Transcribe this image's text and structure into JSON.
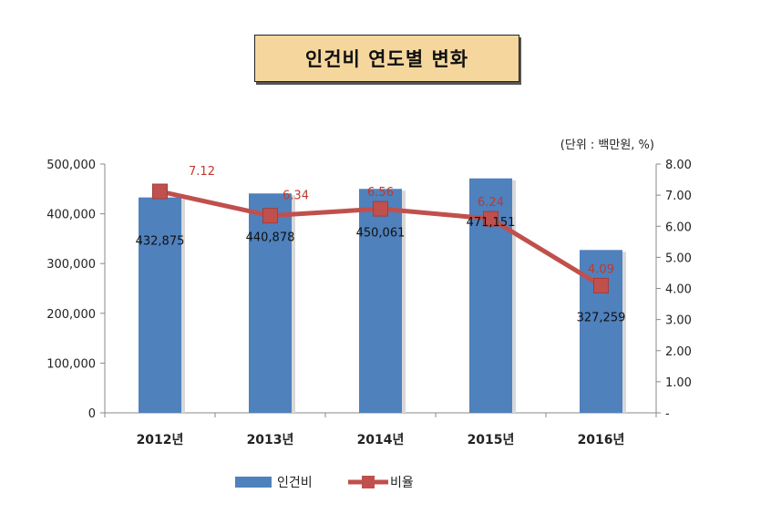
{
  "title": "인건비 연도별 변화",
  "chart_data": {
    "type": "bar+line",
    "unit_note": "(단위 : 백만원, %)",
    "categories": [
      "2012년",
      "2013년",
      "2014년",
      "2015년",
      "2016년"
    ],
    "series": [
      {
        "name": "인건비",
        "type": "bar",
        "axis": "left",
        "values": [
          432875,
          440878,
          450061,
          471151,
          327259
        ],
        "labels": [
          "432,875",
          "440,878",
          "450,061",
          "471,151",
          "327,259"
        ],
        "color": "#4f81bd"
      },
      {
        "name": "비율",
        "type": "line",
        "axis": "right",
        "values": [
          7.12,
          6.34,
          6.56,
          6.24,
          4.09
        ],
        "labels": [
          "7.12",
          "6.34",
          "6.56",
          "6.24",
          "4.09"
        ],
        "color": "#c0504d"
      }
    ],
    "left_axis": {
      "ylim": [
        0,
        500000
      ],
      "ticks": [
        "0",
        "100,000",
        "200,000",
        "300,000",
        "400,000",
        "500,000"
      ]
    },
    "right_axis": {
      "ylim": [
        0,
        8
      ],
      "ticks": [
        "-",
        "1.00",
        "2.00",
        "3.00",
        "4.00",
        "5.00",
        "6.00",
        "7.00",
        "8.00"
      ]
    },
    "grid": false,
    "legend": "bottom"
  }
}
